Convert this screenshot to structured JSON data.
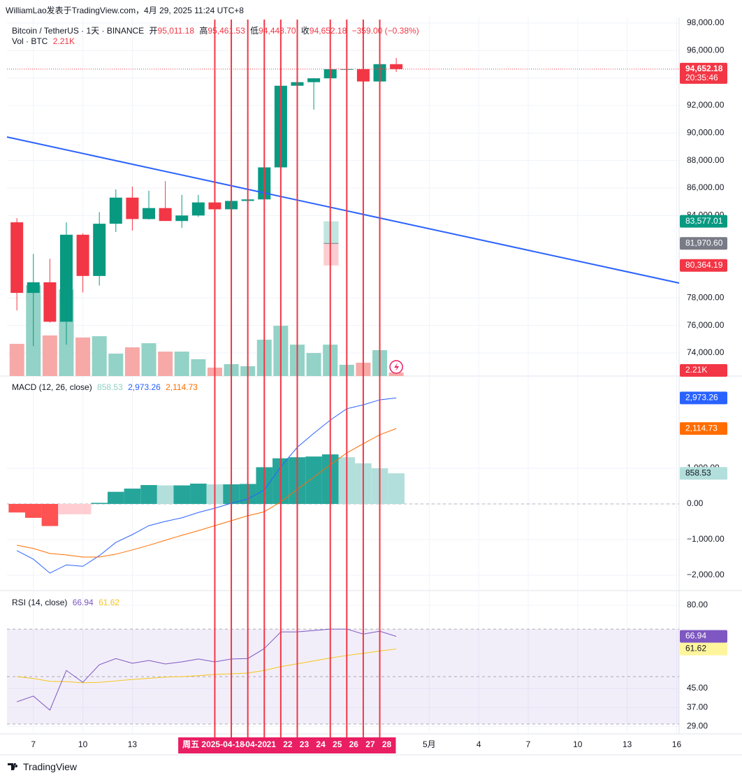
{
  "header": "WilliamLao发表于TradingView.com，4月 29, 2025 11:24 UTC+8",
  "footer": "TradingView",
  "chart_data": [
    {
      "type": "candlestick",
      "legend": {
        "symbol": "Bitcoin / TetherUS · 1天 · BINANCE",
        "open_name": "开",
        "open": "95,011.18",
        "high_name": "高",
        "high": "95,461.53",
        "low_name": "低",
        "low": "94,443.70",
        "close_name": "收",
        "close": "94,652.18",
        "change": "−359.00 (−0.38%)"
      },
      "x": [
        6,
        7,
        8,
        9,
        10,
        11,
        12,
        13,
        14,
        15,
        16,
        17,
        18,
        19,
        20,
        21,
        22,
        23,
        24,
        25,
        26,
        27,
        28,
        29
      ],
      "open": [
        83504,
        78368,
        79140,
        76270,
        82600,
        79600,
        83400,
        85300,
        83740,
        84540,
        83600,
        84000,
        84950,
        84450,
        85060,
        85170,
        87500,
        93440,
        93700,
        93980,
        94640,
        94650,
        93750,
        95011.18
      ],
      "high": [
        83800,
        81200,
        80850,
        83500,
        82700,
        84250,
        85900,
        86100,
        85800,
        86500,
        85500,
        85500,
        85100,
        85600,
        85300,
        88500,
        93800,
        94700,
        94000,
        95700,
        95200,
        95300,
        95600,
        95461.53
      ],
      "low": [
        77100,
        74500,
        76200,
        74600,
        78400,
        78900,
        82800,
        82900,
        83700,
        83600,
        83100,
        83900,
        84300,
        84400,
        83900,
        85100,
        87100,
        91900,
        91700,
        92800,
        93900,
        93600,
        92900,
        94443.7
      ],
      "close": [
        78368,
        79140,
        76270,
        82600,
        79600,
        83400,
        85300,
        83740,
        84540,
        83600,
        84000,
        84950,
        84450,
        85060,
        85170,
        87500,
        93440,
        93700,
        93980,
        94640,
        94650,
        93750,
        95010,
        94652.18
      ],
      "up_color": "#089981",
      "down_color": "#f23645",
      "volume": {
        "name": "Vol · BTC",
        "values": [
          20300,
          57300,
          25600,
          54700,
          24300,
          25100,
          14100,
          18100,
          20700,
          15400,
          15400,
          10600,
          5300,
          7500,
          6200,
          22900,
          31700,
          19800,
          14500,
          19800,
          7100,
          8400,
          16300,
          2210
        ],
        "last_label": "2.21K",
        "up_color": "#93d2c6",
        "down_color": "#f7a9a7"
      },
      "xlim": [
        5.4,
        46.15
      ],
      "xticks": [
        7,
        10,
        13,
        {
          "value": 31,
          "label": "5月"
        },
        {
          "value": 34,
          "label": "4"
        },
        {
          "value": 37,
          "label": "7"
        },
        {
          "value": 40,
          "label": "10"
        },
        {
          "value": 43,
          "label": "13"
        },
        {
          "value": 46,
          "label": "16"
        }
      ],
      "highlight_xticks": [
        {
          "value": 18,
          "label": "周五 2025-04-18"
        },
        {
          "value": 20,
          "label": "-04-20"
        },
        21,
        22,
        23,
        24,
        25,
        26,
        27,
        28
      ],
      "highlight_color": "#e91e63",
      "vertical_markers": [
        18,
        19,
        20,
        21,
        22,
        23,
        25,
        26,
        27,
        28
      ],
      "ylim": [
        72320,
        98407
      ],
      "yticks": [
        {
          "value": 74000,
          "label": "74,000.00"
        },
        {
          "value": 76000,
          "label": "76,000.00"
        },
        {
          "value": 78000,
          "label": "78,000.00"
        },
        {
          "value": 84000,
          "label": "84,000.00"
        },
        {
          "value": 86000,
          "label": "86,000.00"
        },
        {
          "value": 88000,
          "label": "88,000.00"
        },
        {
          "value": 90000,
          "label": "90,000.00"
        },
        {
          "value": 92000,
          "label": "92,000.00"
        },
        {
          "value": 94000,
          "label": "94,000.00"
        },
        {
          "value": 96000,
          "label": "96,000.00"
        },
        {
          "value": 98000,
          "label": "98,000.00"
        }
      ],
      "grid": true,
      "last_price": {
        "value": 94652.18,
        "label": "94,652.18",
        "timer": "20:35:46"
      },
      "trendline": {
        "x": [
          5.4,
          46.15
        ],
        "y": [
          89711,
          79084
        ],
        "color": "#2962ff"
      },
      "position_box": {
        "x": [
          24.6,
          25.5
        ],
        "top": {
          "value": 83577.01,
          "label": "83,577.01"
        },
        "mid": {
          "value": 81970.6,
          "label": "81,970.60"
        },
        "bottom": {
          "value": 80364.19,
          "label": "80,364.19"
        }
      }
    },
    {
      "type": "macd",
      "title": "MACD (12, 26, close)",
      "x": [
        6,
        7,
        8,
        9,
        10,
        11,
        12,
        13,
        14,
        15,
        16,
        17,
        18,
        19,
        20,
        21,
        22,
        23,
        24,
        25,
        26,
        27,
        28,
        29
      ],
      "histogram": {
        "values": [
          -240,
          -390,
          -620,
          -290,
          -290,
          30,
          340,
          430,
          530,
          520,
          520,
          570,
          550,
          550,
          560,
          1030,
          1280,
          1310,
          1330,
          1390,
          1310,
          1140,
          1000,
          858.53
        ],
        "label": "858.53",
        "colors": {
          "up_strong": "#26a69a",
          "up_weak": "#b2dfdb",
          "down_strong": "#ff5252",
          "down_weak": "#ffcdd2"
        }
      },
      "macd": {
        "color": "#2962ff",
        "values": [
          -1310,
          -1550,
          -1940,
          -1710,
          -1750,
          -1450,
          -1080,
          -860,
          -610,
          -490,
          -390,
          -240,
          -120,
          20,
          140,
          390,
          1040,
          1590,
          1980,
          2350,
          2670,
          2780,
          2920,
          2973.26
        ],
        "label": "2,973.26"
      },
      "signal": {
        "color": "#ff6d00",
        "values": [
          -1160,
          -1250,
          -1390,
          -1430,
          -1490,
          -1490,
          -1410,
          -1290,
          -1160,
          -1020,
          -880,
          -750,
          -610,
          -470,
          -330,
          -220,
          60,
          410,
          750,
          1100,
          1430,
          1690,
          1940,
          2114.73
        ],
        "label": "2,114.73"
      },
      "ylim": [
        -2431,
        3588
      ],
      "yticks": [
        {
          "value": -2000,
          "label": "−2,000.00"
        },
        {
          "value": -1000,
          "label": "−1,000.00"
        },
        {
          "value": 0,
          "label": "0.00"
        },
        {
          "value": 1000,
          "label": "1,000.00"
        }
      ]
    },
    {
      "type": "rsi",
      "title": "RSI (14, close)",
      "x": [
        6,
        7,
        8,
        9,
        10,
        11,
        12,
        13,
        14,
        15,
        16,
        17,
        18,
        19,
        20,
        21,
        22,
        23,
        24,
        25,
        26,
        27,
        28,
        29
      ],
      "rsi": {
        "color": "#7e57c2",
        "values": [
          39.4,
          41.8,
          35.9,
          52.6,
          47.6,
          55,
          57.6,
          55.6,
          56.8,
          55.3,
          56.2,
          57.4,
          56.2,
          57.4,
          57.6,
          61.8,
          68.8,
          68.8,
          69.4,
          70,
          70,
          67.9,
          69.1,
          66.94
        ],
        "label": "66.94"
      },
      "ma": {
        "color": "#f5c518",
        "values": [
          50,
          49.2,
          48,
          47.9,
          47.4,
          47.6,
          48.2,
          48.8,
          49.3,
          49.8,
          50,
          50.4,
          50.9,
          51.2,
          51.5,
          52.6,
          54.2,
          55.4,
          56.6,
          57.8,
          58.9,
          59.8,
          60.8,
          61.62
        ],
        "label": "61.62"
      },
      "band_levels": [
        70,
        50,
        30
      ],
      "band_color": "#7e57c2",
      "ylim": [
        25.9,
        86.2
      ],
      "yticks": [
        {
          "value": 29,
          "label": "29.00"
        },
        {
          "value": 37,
          "label": "37.00"
        },
        {
          "value": 45,
          "label": "45.00"
        },
        {
          "value": 80,
          "label": "80.00"
        }
      ]
    }
  ]
}
